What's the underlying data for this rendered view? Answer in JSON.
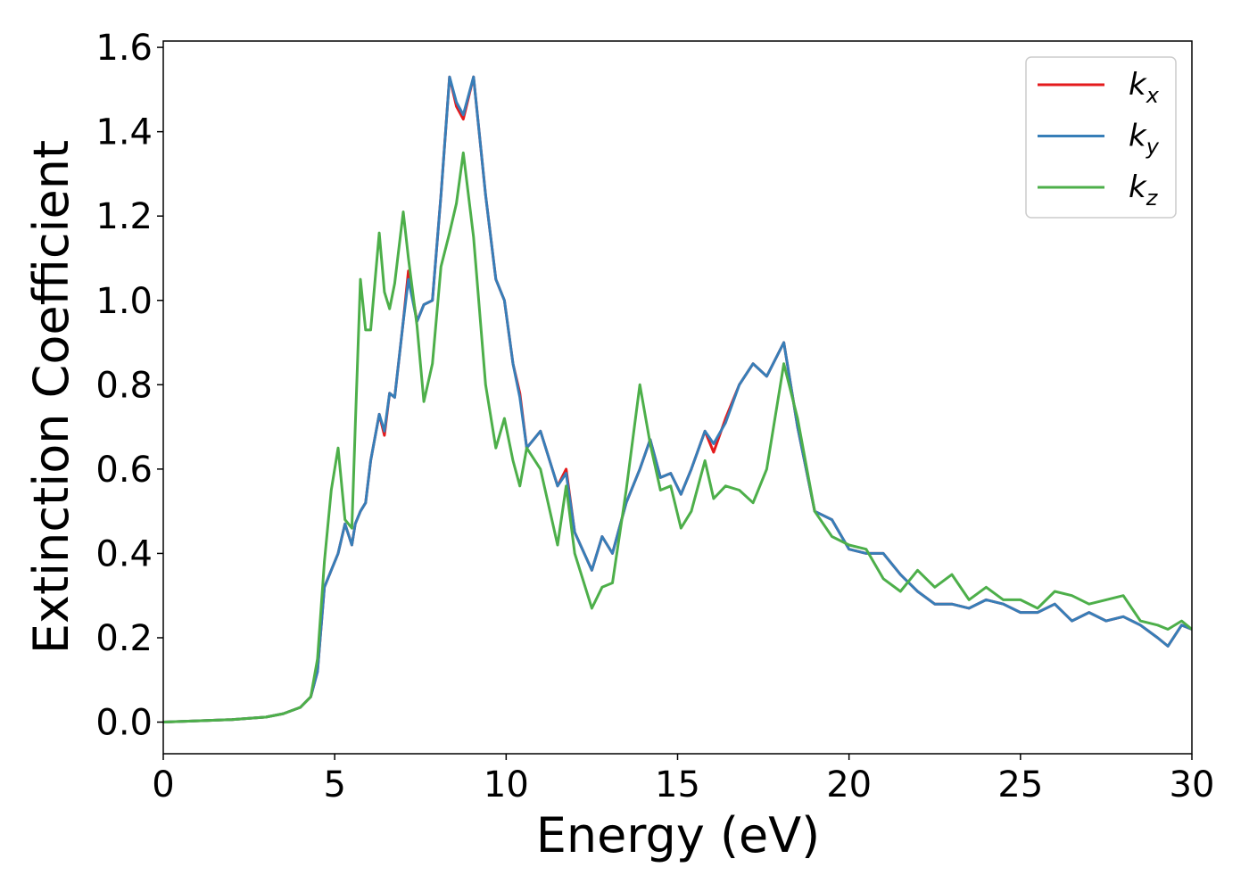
{
  "chart_data": {
    "type": "line",
    "x_label": "Energy (eV)",
    "y_label": "Extinction Coefficient",
    "x": [
      0,
      1,
      2,
      3,
      3.5,
      4.0,
      4.3,
      4.5,
      4.7,
      4.9,
      5.1,
      5.3,
      5.5,
      5.6,
      5.75,
      5.9,
      6.05,
      6.3,
      6.45,
      6.6,
      6.75,
      7.0,
      7.15,
      7.4,
      7.6,
      7.85,
      8.1,
      8.35,
      8.55,
      8.75,
      9.05,
      9.4,
      9.7,
      9.95,
      10.2,
      10.4,
      10.6,
      11.0,
      11.5,
      11.75,
      12.0,
      12.5,
      12.8,
      13.1,
      13.5,
      13.9,
      14.2,
      14.5,
      14.8,
      15.1,
      15.4,
      15.8,
      16.05,
      16.4,
      16.8,
      17.2,
      17.6,
      18.1,
      18.5,
      19.0,
      19.5,
      20.0,
      20.5,
      21.0,
      21.5,
      22.0,
      22.5,
      23.0,
      23.5,
      24.0,
      24.5,
      25.0,
      25.5,
      26.0,
      26.5,
      27.0,
      27.5,
      28.0,
      28.5,
      29.0,
      29.3,
      29.7,
      30.0
    ],
    "series": [
      {
        "name": "k",
        "subscript": "x",
        "color": "#e41a1c",
        "values": [
          0.0,
          0.003,
          0.006,
          0.012,
          0.02,
          0.035,
          0.06,
          0.12,
          0.32,
          0.36,
          0.4,
          0.47,
          0.42,
          0.47,
          0.5,
          0.52,
          0.62,
          0.73,
          0.68,
          0.78,
          0.77,
          0.95,
          1.07,
          0.95,
          0.99,
          1.0,
          1.25,
          1.53,
          1.46,
          1.43,
          1.53,
          1.25,
          1.05,
          1.0,
          0.85,
          0.78,
          0.65,
          0.69,
          0.56,
          0.6,
          0.45,
          0.36,
          0.44,
          0.4,
          0.52,
          0.6,
          0.67,
          0.58,
          0.59,
          0.54,
          0.6,
          0.69,
          0.64,
          0.72,
          0.8,
          0.85,
          0.82,
          0.9,
          0.7,
          0.5,
          0.48,
          0.41,
          0.4,
          0.4,
          0.35,
          0.31,
          0.28,
          0.28,
          0.27,
          0.29,
          0.28,
          0.26,
          0.26,
          0.28,
          0.24,
          0.26,
          0.24,
          0.25,
          0.23,
          0.2,
          0.18,
          0.23,
          0.22
        ]
      },
      {
        "name": "k",
        "subscript": "y",
        "color": "#377eb8",
        "values": [
          0.0,
          0.003,
          0.006,
          0.012,
          0.02,
          0.035,
          0.06,
          0.12,
          0.32,
          0.36,
          0.4,
          0.47,
          0.42,
          0.47,
          0.5,
          0.52,
          0.62,
          0.73,
          0.69,
          0.78,
          0.77,
          0.95,
          1.05,
          0.95,
          0.99,
          1.0,
          1.25,
          1.53,
          1.47,
          1.44,
          1.53,
          1.25,
          1.05,
          1.0,
          0.85,
          0.77,
          0.65,
          0.69,
          0.56,
          0.59,
          0.45,
          0.36,
          0.44,
          0.4,
          0.52,
          0.6,
          0.67,
          0.58,
          0.59,
          0.54,
          0.6,
          0.69,
          0.66,
          0.71,
          0.8,
          0.85,
          0.82,
          0.9,
          0.7,
          0.5,
          0.48,
          0.41,
          0.4,
          0.4,
          0.35,
          0.31,
          0.28,
          0.28,
          0.27,
          0.29,
          0.28,
          0.26,
          0.26,
          0.28,
          0.24,
          0.26,
          0.24,
          0.25,
          0.23,
          0.2,
          0.18,
          0.23,
          0.22
        ]
      },
      {
        "name": "k",
        "subscript": "z",
        "color": "#4daf4a",
        "values": [
          0.0,
          0.003,
          0.006,
          0.012,
          0.02,
          0.035,
          0.06,
          0.15,
          0.38,
          0.55,
          0.65,
          0.48,
          0.46,
          0.7,
          1.05,
          0.93,
          0.93,
          1.16,
          1.02,
          0.98,
          1.04,
          1.21,
          1.1,
          0.94,
          0.76,
          0.85,
          1.08,
          1.16,
          1.23,
          1.35,
          1.15,
          0.8,
          0.65,
          0.72,
          0.62,
          0.56,
          0.65,
          0.6,
          0.42,
          0.56,
          0.4,
          0.27,
          0.32,
          0.33,
          0.55,
          0.8,
          0.66,
          0.55,
          0.56,
          0.46,
          0.5,
          0.62,
          0.53,
          0.56,
          0.55,
          0.52,
          0.6,
          0.85,
          0.72,
          0.5,
          0.44,
          0.42,
          0.41,
          0.34,
          0.31,
          0.36,
          0.32,
          0.35,
          0.29,
          0.32,
          0.29,
          0.29,
          0.27,
          0.31,
          0.3,
          0.28,
          0.29,
          0.3,
          0.24,
          0.23,
          0.22,
          0.24,
          0.22
        ]
      }
    ],
    "xlim": [
      0,
      30
    ],
    "ylim": [
      -0.075,
      1.615
    ],
    "xticks": [
      0,
      5,
      10,
      15,
      20,
      25,
      30
    ],
    "yticks": [
      {
        "value": 0,
        "label": "0.0"
      },
      0.2,
      0.4,
      0.6,
      0.8,
      {
        "value": 1,
        "label": "1.0"
      },
      1.2,
      1.4,
      1.6
    ],
    "legend": "upper right",
    "grid": false
  }
}
